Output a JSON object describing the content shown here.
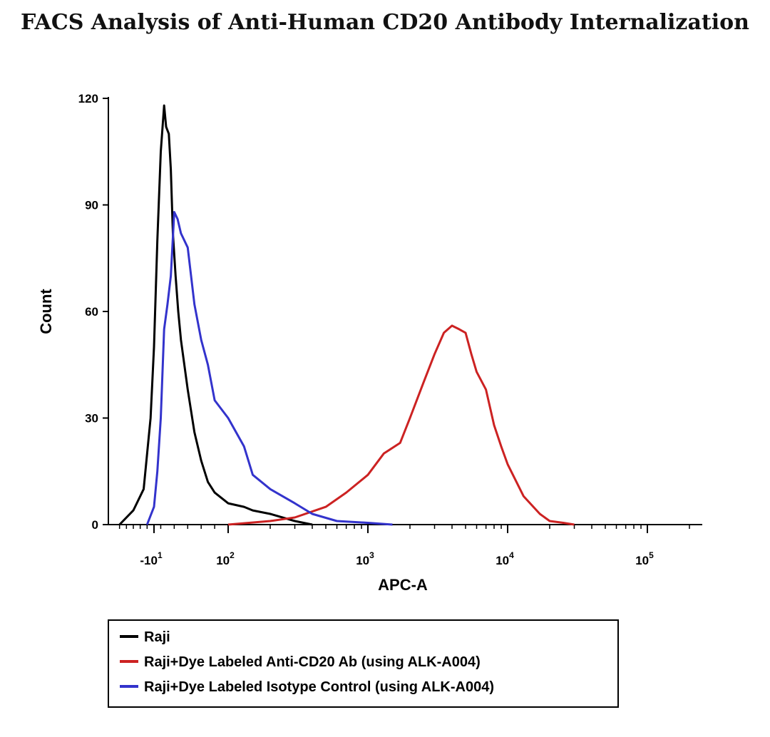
{
  "chart_data": {
    "type": "line",
    "title": "FACS Analysis of Anti-Human CD20 Antibody Internalization",
    "xlabel": "APC-A",
    "ylabel": "Count",
    "xscale": "biexponential",
    "ylim": [
      0,
      120
    ],
    "yticks": [
      0,
      30,
      60,
      90,
      120
    ],
    "xticks": [
      {
        "value": -10,
        "label": "-10",
        "exp": "1"
      },
      {
        "value": 100,
        "label": "10",
        "exp": "2"
      },
      {
        "value": 1000,
        "label": "10",
        "exp": "3"
      },
      {
        "value": 10000,
        "label": "10",
        "exp": "4"
      },
      {
        "value": 100000,
        "label": "10",
        "exp": "5"
      }
    ],
    "grid": false,
    "legend_position": "bottom-left",
    "series": [
      {
        "name": "Raji",
        "color": "#000000",
        "x": [
          -60,
          -40,
          -25,
          -15,
          -10,
          -5,
          0,
          5,
          8,
          12,
          15,
          18,
          22,
          26,
          30,
          40,
          50,
          60,
          70,
          80,
          100,
          130,
          150,
          200,
          300,
          400
        ],
        "y": [
          0,
          4,
          10,
          30,
          50,
          80,
          105,
          118,
          112,
          110,
          100,
          82,
          70,
          60,
          52,
          38,
          26,
          18,
          12,
          9,
          6,
          5,
          4,
          3,
          1,
          0
        ]
      },
      {
        "name": "Raji+Dye Labeled Anti-CD20 Ab (using ALK-A004)",
        "color": "#cc2222",
        "x": [
          100,
          200,
          300,
          500,
          700,
          1000,
          1300,
          1700,
          2000,
          2500,
          3000,
          3500,
          4000,
          4500,
          5000,
          5500,
          6000,
          7000,
          8000,
          9000,
          10000,
          13000,
          17000,
          20000,
          25000,
          30000
        ],
        "y": [
          0,
          1,
          2,
          5,
          9,
          14,
          20,
          23,
          30,
          40,
          48,
          54,
          56,
          55,
          54,
          48,
          43,
          38,
          28,
          22,
          17,
          8,
          3,
          1,
          0.5,
          0
        ]
      },
      {
        "name": "Raji+Dye Labeled Isotype Control (using ALK-A004)",
        "color": "#3333cc",
        "x": [
          -20,
          -10,
          -5,
          0,
          5,
          10,
          15,
          20,
          25,
          30,
          40,
          50,
          60,
          70,
          80,
          100,
          130,
          150,
          200,
          300,
          400,
          600,
          1000,
          1500
        ],
        "y": [
          0,
          5,
          15,
          30,
          55,
          62,
          70,
          88,
          86,
          82,
          78,
          62,
          52,
          45,
          35,
          30,
          22,
          14,
          10,
          6,
          3,
          1,
          0.5,
          0
        ]
      }
    ]
  }
}
